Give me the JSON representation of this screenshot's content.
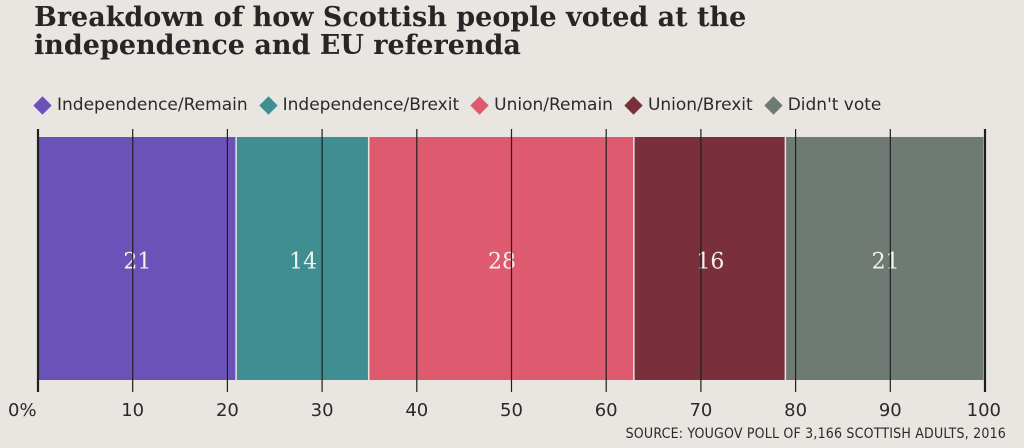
{
  "chart_data": {
    "type": "bar",
    "orientation": "horizontal-stacked",
    "title_lines": [
      "Breakdown of how Scottish people voted at the",
      "independence and EU referenda"
    ],
    "series": [
      {
        "name": "Independence/Remain",
        "value": 21,
        "color": "#6a52b8"
      },
      {
        "name": "Independence/Brexit",
        "value": 14,
        "color": "#3f8f92"
      },
      {
        "name": "Union/Remain",
        "value": 28,
        "color": "#de5a6e"
      },
      {
        "name": "Union/Brexit",
        "value": 16,
        "color": "#7a2f3d"
      },
      {
        "name": "Didn't vote",
        "value": 21,
        "color": "#6f7a75"
      }
    ],
    "xlim": [
      0,
      100
    ],
    "ticks": [
      {
        "value": 0,
        "label": "0%"
      },
      {
        "value": 10,
        "label": "10"
      },
      {
        "value": 20,
        "label": "20"
      },
      {
        "value": 30,
        "label": "30"
      },
      {
        "value": 40,
        "label": "40"
      },
      {
        "value": 50,
        "label": "50"
      },
      {
        "value": 60,
        "label": "60"
      },
      {
        "value": 70,
        "label": "70"
      },
      {
        "value": 80,
        "label": "80"
      },
      {
        "value": 90,
        "label": "90"
      },
      {
        "value": 100,
        "label": "100"
      }
    ],
    "gridlines": true,
    "legend_position": "top",
    "source": "SOURCE: YOUGOV POLL OF 3,166 SCOTTISH ADULTS, 2016"
  }
}
